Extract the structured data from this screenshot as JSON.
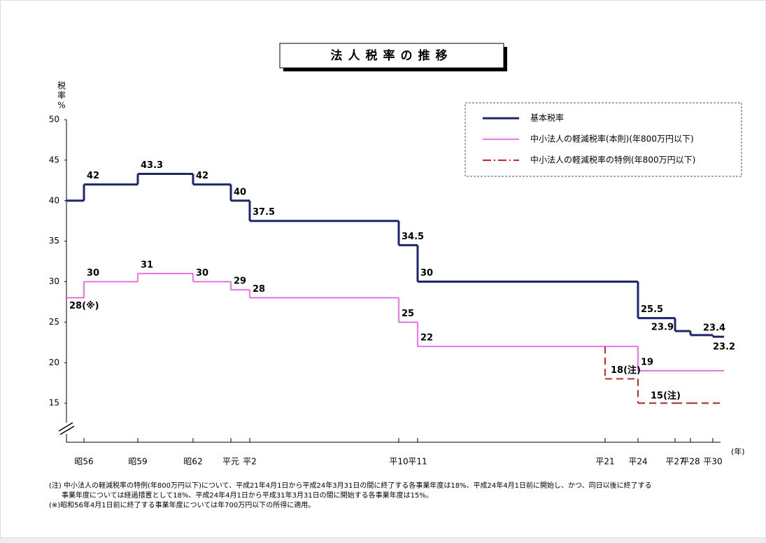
{
  "chart_data": {
    "type": "step",
    "title": "法人税率の推移",
    "y_label": [
      "税",
      "率",
      "%"
    ],
    "x_unit": "(年)",
    "categories": [
      null,
      "昭56",
      "昭59",
      "昭62",
      "平元",
      "平2",
      "平10",
      "平11",
      "平21",
      "平24",
      "平27",
      "平28",
      "平30"
    ],
    "ylim": [
      10,
      50
    ],
    "yticks": [
      15,
      20,
      25,
      30,
      35,
      40,
      45,
      50
    ],
    "legend": "top-right",
    "series": [
      {
        "name": "基本税率",
        "color": "#1c2474",
        "style": "solid",
        "values": [
          40,
          42,
          43.3,
          42,
          40,
          37.5,
          34.5,
          30,
          30,
          25.5,
          23.9,
          23.4,
          23.2
        ],
        "value_labels": [
          null,
          "42",
          "43.3",
          "42",
          "40",
          "37.5",
          "34.5",
          "30",
          null,
          "25.5",
          "23.9",
          "23.4",
          "23.2"
        ]
      },
      {
        "name": "中小法人の軽減税率(本則)(年800万円以下)",
        "color": "#ff40ff",
        "style": "solid",
        "values": [
          28,
          30,
          31,
          30,
          29,
          28,
          25,
          22,
          22,
          19,
          19,
          19,
          19
        ],
        "value_labels": [
          "28(※)",
          "30",
          "31",
          "30",
          "29",
          "28",
          "25",
          "22",
          null,
          "19",
          null,
          null,
          null
        ]
      },
      {
        "name": "中小法人の軽減税率の特例(年800万円以下)",
        "color": "#e02020",
        "style": "dashed",
        "values": [
          null,
          null,
          null,
          null,
          null,
          null,
          null,
          null,
          18,
          15,
          15,
          15,
          15
        ],
        "value_labels": [
          null,
          null,
          null,
          null,
          null,
          null,
          null,
          null,
          "18(注)",
          "15(注)",
          null,
          null,
          null
        ]
      }
    ],
    "notes": [
      "(注) 中小法人の軽減税率の特例(年800万円以下)について、平成21年4月1日から平成24年3月31日の間に終了する各事業年度は18%、平成24年4月1日前に開始し、かつ、同日以後に終了する",
      "事業年度については経過措置として18%、平成24年4月1日から平成31年3月31日の間に開始する各事業年度は15%。",
      "(※)昭和56年4月1日前に終了する事業年度については年700万円以下の所得に適用。"
    ]
  }
}
